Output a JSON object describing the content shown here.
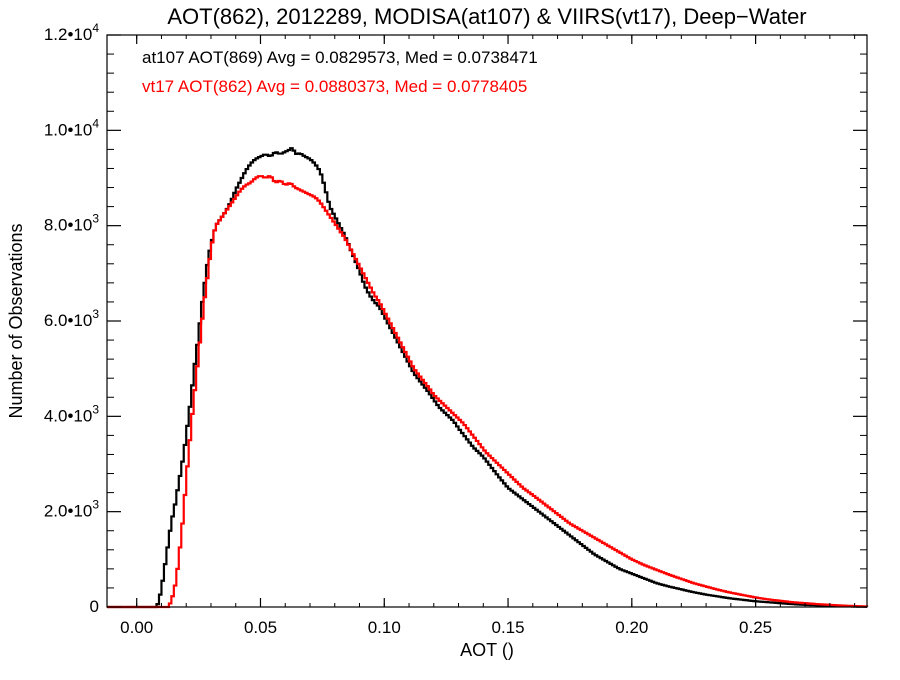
{
  "chart_data": {
    "type": "line",
    "title": "AOT(862), 2012289, MODISA(at107) & VIIRS(vt17), Deep−Water",
    "xlabel": "AOT ()",
    "ylabel": "Number of Observations",
    "xlim": [
      -0.012,
      0.295
    ],
    "ylim": [
      0,
      12000
    ],
    "x_ticks": [
      {
        "value": 0.0,
        "label": "0.00"
      },
      {
        "value": 0.05,
        "label": "0.05"
      },
      {
        "value": 0.1,
        "label": "0.10"
      },
      {
        "value": 0.15,
        "label": "0.15"
      },
      {
        "value": 0.2,
        "label": "0.20"
      },
      {
        "value": 0.25,
        "label": "0.25"
      }
    ],
    "y_ticks": [
      {
        "value": 0,
        "mant": "0",
        "exp": ""
      },
      {
        "value": 2000,
        "mant": "2.0•10",
        "exp": "3"
      },
      {
        "value": 4000,
        "mant": "4.0•10",
        "exp": "3"
      },
      {
        "value": 6000,
        "mant": "6.0•10",
        "exp": "3"
      },
      {
        "value": 8000,
        "mant": "8.0•10",
        "exp": "3"
      },
      {
        "value": 10000,
        "mant": "1.0•10",
        "exp": "4"
      },
      {
        "value": 12000,
        "mant": "1.2•10",
        "exp": "4"
      }
    ],
    "grid": false,
    "step": 0.001,
    "annotations": [
      {
        "text": "at107 AOT(869) Avg = 0.0829573, Med = 0.0738471",
        "color": "#000000"
      },
      {
        "text": "vt17 AOT(862) Avg = 0.0880373, Med = 0.0778405",
        "color": "#ff0000"
      }
    ],
    "series": [
      {
        "color": "#000000",
        "points": [
          [
            -0.012,
            0
          ],
          [
            0.008,
            0
          ],
          [
            0.009,
            120
          ],
          [
            0.01,
            400
          ],
          [
            0.011,
            700
          ],
          [
            0.012,
            1100
          ],
          [
            0.013,
            1400
          ],
          [
            0.014,
            1800
          ],
          [
            0.015,
            2000
          ],
          [
            0.016,
            2300
          ],
          [
            0.017,
            2600
          ],
          [
            0.018,
            2900
          ],
          [
            0.019,
            3200
          ],
          [
            0.02,
            3600
          ],
          [
            0.021,
            4000
          ],
          [
            0.022,
            4400
          ],
          [
            0.023,
            4900
          ],
          [
            0.024,
            5300
          ],
          [
            0.025,
            5700
          ],
          [
            0.026,
            6200
          ],
          [
            0.027,
            6600
          ],
          [
            0.028,
            7000
          ],
          [
            0.029,
            7350
          ],
          [
            0.03,
            7600
          ],
          [
            0.031,
            7800
          ],
          [
            0.032,
            8000
          ],
          [
            0.034,
            8150
          ],
          [
            0.036,
            8300
          ],
          [
            0.038,
            8500
          ],
          [
            0.04,
            8750
          ],
          [
            0.042,
            8950
          ],
          [
            0.044,
            9150
          ],
          [
            0.046,
            9300
          ],
          [
            0.048,
            9400
          ],
          [
            0.05,
            9450
          ],
          [
            0.052,
            9500
          ],
          [
            0.054,
            9450
          ],
          [
            0.056,
            9550
          ],
          [
            0.058,
            9500
          ],
          [
            0.06,
            9550
          ],
          [
            0.062,
            9600
          ],
          [
            0.063,
            9650
          ],
          [
            0.064,
            9500
          ],
          [
            0.066,
            9520
          ],
          [
            0.068,
            9450
          ],
          [
            0.07,
            9400
          ],
          [
            0.072,
            9300
          ],
          [
            0.074,
            9150
          ],
          [
            0.075,
            9000
          ],
          [
            0.076,
            8800
          ],
          [
            0.077,
            8600
          ],
          [
            0.078,
            8400
          ],
          [
            0.08,
            8200
          ],
          [
            0.082,
            8000
          ],
          [
            0.084,
            7800
          ],
          [
            0.086,
            7550
          ],
          [
            0.088,
            7300
          ],
          [
            0.09,
            7050
          ],
          [
            0.092,
            6750
          ],
          [
            0.094,
            6550
          ],
          [
            0.096,
            6400
          ],
          [
            0.098,
            6300
          ],
          [
            0.1,
            6100
          ],
          [
            0.102,
            5900
          ],
          [
            0.104,
            5700
          ],
          [
            0.106,
            5500
          ],
          [
            0.108,
            5300
          ],
          [
            0.11,
            5100
          ],
          [
            0.112,
            4900
          ],
          [
            0.115,
            4700
          ],
          [
            0.118,
            4500
          ],
          [
            0.12,
            4350
          ],
          [
            0.122,
            4200
          ],
          [
            0.125,
            4050
          ],
          [
            0.128,
            3900
          ],
          [
            0.13,
            3750
          ],
          [
            0.133,
            3550
          ],
          [
            0.136,
            3350
          ],
          [
            0.14,
            3150
          ],
          [
            0.143,
            2950
          ],
          [
            0.146,
            2750
          ],
          [
            0.15,
            2500
          ],
          [
            0.155,
            2300
          ],
          [
            0.16,
            2100
          ],
          [
            0.165,
            1900
          ],
          [
            0.17,
            1700
          ],
          [
            0.175,
            1500
          ],
          [
            0.18,
            1300
          ],
          [
            0.185,
            1100
          ],
          [
            0.19,
            950
          ],
          [
            0.195,
            800
          ],
          [
            0.2,
            700
          ],
          [
            0.205,
            600
          ],
          [
            0.21,
            500
          ],
          [
            0.215,
            430
          ],
          [
            0.22,
            370
          ],
          [
            0.225,
            310
          ],
          [
            0.23,
            260
          ],
          [
            0.235,
            220
          ],
          [
            0.24,
            180
          ],
          [
            0.245,
            150
          ],
          [
            0.25,
            120
          ],
          [
            0.255,
            100
          ],
          [
            0.26,
            80
          ],
          [
            0.265,
            60
          ],
          [
            0.27,
            45
          ],
          [
            0.275,
            35
          ],
          [
            0.28,
            25
          ],
          [
            0.285,
            15
          ],
          [
            0.29,
            10
          ],
          [
            0.295,
            5
          ]
        ]
      },
      {
        "color": "#ff0000",
        "points": [
          [
            -0.012,
            0
          ],
          [
            0.013,
            0
          ],
          [
            0.014,
            150
          ],
          [
            0.015,
            300
          ],
          [
            0.016,
            600
          ],
          [
            0.017,
            1000
          ],
          [
            0.018,
            1500
          ],
          [
            0.019,
            2000
          ],
          [
            0.02,
            2700
          ],
          [
            0.021,
            3200
          ],
          [
            0.022,
            3800
          ],
          [
            0.023,
            4300
          ],
          [
            0.024,
            4800
          ],
          [
            0.025,
            5300
          ],
          [
            0.026,
            5800
          ],
          [
            0.027,
            6300
          ],
          [
            0.028,
            6700
          ],
          [
            0.029,
            7100
          ],
          [
            0.03,
            7500
          ],
          [
            0.031,
            7800
          ],
          [
            0.032,
            8000
          ],
          [
            0.034,
            8150
          ],
          [
            0.036,
            8300
          ],
          [
            0.038,
            8450
          ],
          [
            0.04,
            8600
          ],
          [
            0.042,
            8750
          ],
          [
            0.044,
            8850
          ],
          [
            0.046,
            8900
          ],
          [
            0.048,
            9000
          ],
          [
            0.05,
            9050
          ],
          [
            0.052,
            9000
          ],
          [
            0.054,
            9050
          ],
          [
            0.056,
            8900
          ],
          [
            0.058,
            8950
          ],
          [
            0.06,
            8850
          ],
          [
            0.062,
            8900
          ],
          [
            0.064,
            8800
          ],
          [
            0.066,
            8750
          ],
          [
            0.068,
            8700
          ],
          [
            0.07,
            8650
          ],
          [
            0.072,
            8600
          ],
          [
            0.074,
            8500
          ],
          [
            0.076,
            8350
          ],
          [
            0.078,
            8200
          ],
          [
            0.08,
            8050
          ],
          [
            0.082,
            7900
          ],
          [
            0.084,
            7750
          ],
          [
            0.086,
            7550
          ],
          [
            0.088,
            7350
          ],
          [
            0.09,
            7150
          ],
          [
            0.092,
            6950
          ],
          [
            0.094,
            6750
          ],
          [
            0.096,
            6550
          ],
          [
            0.098,
            6400
          ],
          [
            0.1,
            6200
          ],
          [
            0.102,
            6000
          ],
          [
            0.104,
            5800
          ],
          [
            0.106,
            5600
          ],
          [
            0.108,
            5400
          ],
          [
            0.11,
            5200
          ],
          [
            0.112,
            5000
          ],
          [
            0.115,
            4800
          ],
          [
            0.118,
            4600
          ],
          [
            0.12,
            4450
          ],
          [
            0.123,
            4300
          ],
          [
            0.126,
            4150
          ],
          [
            0.129,
            4000
          ],
          [
            0.132,
            3850
          ],
          [
            0.135,
            3650
          ],
          [
            0.138,
            3450
          ],
          [
            0.141,
            3250
          ],
          [
            0.145,
            3050
          ],
          [
            0.148,
            2900
          ],
          [
            0.152,
            2700
          ],
          [
            0.156,
            2500
          ],
          [
            0.16,
            2350
          ],
          [
            0.165,
            2150
          ],
          [
            0.17,
            1950
          ],
          [
            0.175,
            1750
          ],
          [
            0.18,
            1600
          ],
          [
            0.185,
            1450
          ],
          [
            0.19,
            1300
          ],
          [
            0.195,
            1150
          ],
          [
            0.2,
            1000
          ],
          [
            0.205,
            880
          ],
          [
            0.21,
            780
          ],
          [
            0.215,
            680
          ],
          [
            0.22,
            590
          ],
          [
            0.225,
            500
          ],
          [
            0.23,
            430
          ],
          [
            0.235,
            360
          ],
          [
            0.24,
            300
          ],
          [
            0.245,
            250
          ],
          [
            0.25,
            200
          ],
          [
            0.255,
            160
          ],
          [
            0.26,
            130
          ],
          [
            0.265,
            100
          ],
          [
            0.27,
            80
          ],
          [
            0.275,
            60
          ],
          [
            0.28,
            45
          ],
          [
            0.285,
            30
          ],
          [
            0.29,
            20
          ],
          [
            0.295,
            10
          ]
        ]
      }
    ]
  }
}
